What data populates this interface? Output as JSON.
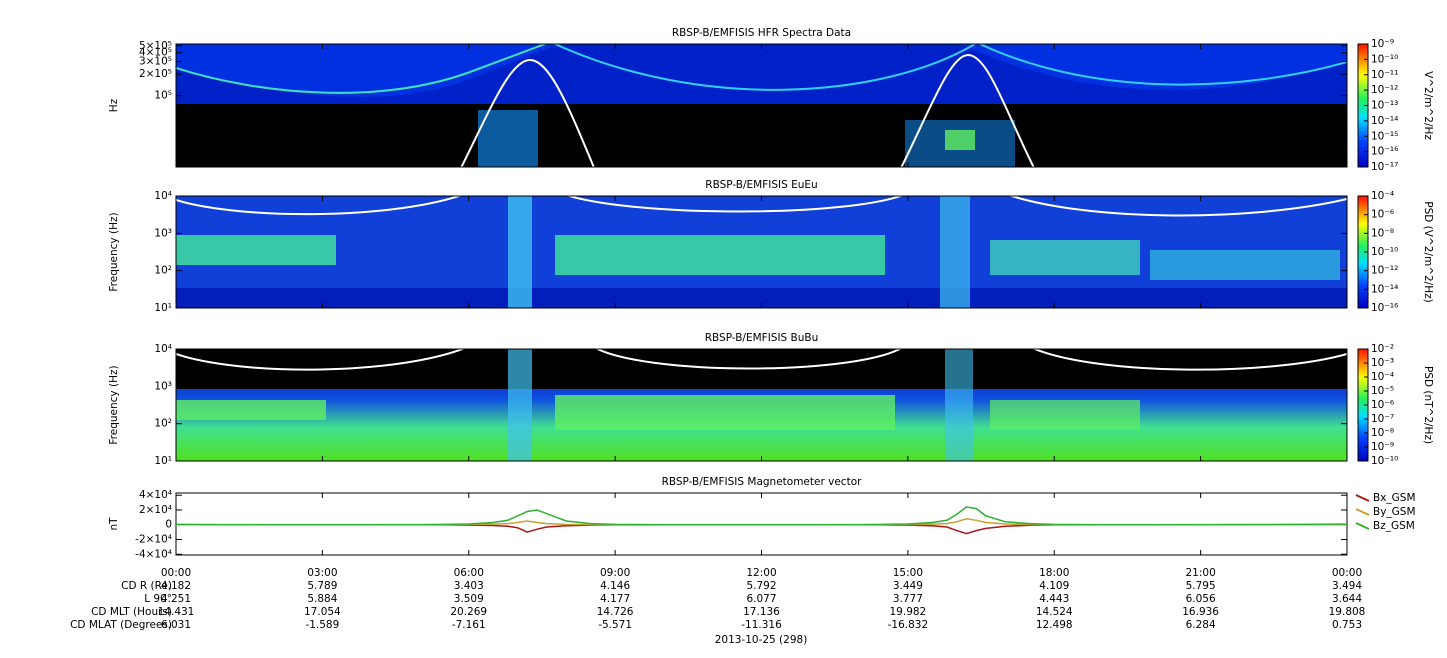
{
  "chart_data": [
    {
      "type": "heatmap",
      "title": "RBSP-B/EMFISIS  HFR Spectra Data",
      "ylabel": "Hz",
      "log": true,
      "ylim": [
        10000,
        530000
      ],
      "yticks": [
        {
          "value": 100000,
          "label": "10⁵"
        },
        {
          "value": 200000,
          "label": "2×10⁵"
        },
        {
          "value": 300000,
          "label": "3×10⁵"
        },
        {
          "value": 400000,
          "label": "4×10⁵"
        },
        {
          "value": 500000,
          "label": "5×10⁵"
        }
      ],
      "colorbar": {
        "label": "V^2/m^2/Hz",
        "lim": [
          1e-17,
          1e-09
        ],
        "ticks": [
          {
            "value": 1e-09,
            "label": "10⁻⁹"
          },
          {
            "value": 1e-10,
            "label": "10⁻¹⁰"
          },
          {
            "value": 1e-11,
            "label": "10⁻¹¹"
          },
          {
            "value": 1e-12,
            "label": "10⁻¹²"
          },
          {
            "value": 1e-13,
            "label": "10⁻¹³"
          },
          {
            "value": 1e-14,
            "label": "10⁻¹⁴"
          },
          {
            "value": 1e-15,
            "label": "10⁻¹⁵"
          },
          {
            "value": 1e-16,
            "label": "10⁻¹⁶"
          },
          {
            "value": 1e-17,
            "label": "10⁻¹⁷"
          }
        ]
      }
    },
    {
      "type": "heatmap",
      "title": "RBSP-B/EMFISIS  EuEu",
      "ylabel": "Frequency (Hz)",
      "log": true,
      "ylim": [
        10,
        10000
      ],
      "yticks": [
        {
          "value": 10,
          "label": "10¹"
        },
        {
          "value": 100,
          "label": "10²"
        },
        {
          "value": 1000,
          "label": "10³"
        },
        {
          "value": 10000,
          "label": "10⁴"
        }
      ],
      "colorbar": {
        "label": "PSD (V^2/m^2/Hz)",
        "lim": [
          1e-16,
          0.0001
        ],
        "ticks": [
          {
            "value": 0.0001,
            "label": "10⁻⁴"
          },
          {
            "value": 1e-06,
            "label": "10⁻⁶"
          },
          {
            "value": 1e-08,
            "label": "10⁻⁸"
          },
          {
            "value": 1e-10,
            "label": "10⁻¹⁰"
          },
          {
            "value": 1e-12,
            "label": "10⁻¹²"
          },
          {
            "value": 1e-14,
            "label": "10⁻¹⁴"
          },
          {
            "value": 1e-16,
            "label": "10⁻¹⁶"
          }
        ]
      }
    },
    {
      "type": "heatmap",
      "title": "RBSP-B/EMFISIS  BuBu",
      "ylabel": "Frequency (Hz)",
      "log": true,
      "ylim": [
        10,
        10000
      ],
      "yticks": [
        {
          "value": 10,
          "label": "10¹"
        },
        {
          "value": 100,
          "label": "10²"
        },
        {
          "value": 1000,
          "label": "10³"
        },
        {
          "value": 10000,
          "label": "10⁴"
        }
      ],
      "colorbar": {
        "label": "PSD (nT^2/Hz)",
        "lim": [
          1e-10,
          0.01
        ],
        "ticks": [
          {
            "value": 0.01,
            "label": "10⁻²"
          },
          {
            "value": 0.001,
            "label": "10⁻³"
          },
          {
            "value": 0.0001,
            "label": "10⁻⁴"
          },
          {
            "value": 1e-05,
            "label": "10⁻⁵"
          },
          {
            "value": 1e-06,
            "label": "10⁻⁶"
          },
          {
            "value": 1e-07,
            "label": "10⁻⁷"
          },
          {
            "value": 1e-08,
            "label": "10⁻⁸"
          },
          {
            "value": 1e-09,
            "label": "10⁻⁹"
          },
          {
            "value": 1e-10,
            "label": "10⁻¹⁰"
          }
        ]
      }
    },
    {
      "type": "line",
      "title": "RBSP-B/EMFISIS  Magnetometer vector",
      "ylabel": "nT",
      "xlim": [
        0,
        24
      ],
      "xticks": [
        {
          "value": 0,
          "label": "00:00"
        },
        {
          "value": 3,
          "label": "03:00"
        },
        {
          "value": 6,
          "label": "06:00"
        },
        {
          "value": 9,
          "label": "09:00"
        },
        {
          "value": 12,
          "label": "12:00"
        },
        {
          "value": 15,
          "label": "15:00"
        },
        {
          "value": 18,
          "label": "18:00"
        },
        {
          "value": 21,
          "label": "21:00"
        },
        {
          "value": 24,
          "label": "00:00"
        }
      ],
      "ylim": [
        -41000,
        43000
      ],
      "yticks": [
        {
          "value": 40000,
          "label": "4×10⁴"
        },
        {
          "value": 20000,
          "label": "2×10⁴"
        },
        0,
        {
          "value": -20000,
          "label": "-2×10⁴"
        },
        {
          "value": -40000,
          "label": "-4×10⁴"
        }
      ],
      "x": [
        0,
        1,
        2,
        3,
        4,
        5,
        5.5,
        6,
        6.5,
        6.8,
        7,
        7.2,
        7.4,
        7.6,
        8,
        8.5,
        9,
        10,
        11,
        12,
        13,
        14,
        14.5,
        15,
        15.5,
        15.8,
        16,
        16.2,
        16.4,
        16.6,
        17,
        17.5,
        18,
        19,
        20,
        21,
        22,
        23,
        24
      ],
      "series": [
        {
          "name": "Bx_GSM",
          "color": "#a81818",
          "values": [
            0,
            0,
            0,
            0,
            0,
            0,
            -200,
            -500,
            -1000,
            -2000,
            -4000,
            -10000,
            -6000,
            -3000,
            -1500,
            -500,
            -200,
            0,
            0,
            0,
            0,
            0,
            -200,
            -500,
            -1500,
            -3000,
            -8000,
            -12000,
            -8000,
            -5000,
            -2000,
            -800,
            -200,
            0,
            0,
            0,
            0,
            0,
            0
          ]
        },
        {
          "name": "By_GSM",
          "color": "#c8a030",
          "values": [
            0,
            0,
            0,
            0,
            0,
            0,
            100,
            300,
            800,
            1500,
            3000,
            5000,
            3000,
            1500,
            500,
            200,
            0,
            0,
            0,
            0,
            0,
            0,
            100,
            300,
            800,
            1500,
            4000,
            8000,
            6000,
            3000,
            1000,
            300,
            100,
            0,
            0,
            0,
            0,
            0,
            0
          ]
        },
        {
          "name": "Bz_GSM",
          "color": "#30b030",
          "values": [
            500,
            200,
            0,
            0,
            0,
            200,
            500,
            1000,
            3000,
            6000,
            12000,
            18000,
            20000,
            15000,
            5000,
            1500,
            500,
            0,
            0,
            0,
            0,
            200,
            500,
            1000,
            3000,
            6000,
            14000,
            24000,
            22000,
            12000,
            4000,
            1500,
            500,
            0,
            0,
            200,
            300,
            500,
            800
          ]
        }
      ]
    }
  ],
  "ephemeris": [
    {
      "label": "CD R (Re)",
      "values": [
        4.182,
        5.789,
        3.403,
        4.146,
        5.792,
        3.449,
        4.109,
        5.795,
        3.494
      ]
    },
    {
      "label": "L 90°",
      "values": [
        4.251,
        5.884,
        3.509,
        4.177,
        6.077,
        3.777,
        4.443,
        6.056,
        3.644
      ]
    },
    {
      "label": "CD MLT (Hours)",
      "values": [
        14.431,
        17.054,
        20.269,
        14.726,
        17.136,
        19.982,
        14.524,
        16.936,
        19.808
      ]
    },
    {
      "label": "CD MLAT (Degrees)",
      "values": [
        6.031,
        -1.589,
        -7.161,
        -5.571,
        -11.316,
        -16.832,
        12.498,
        6.284,
        0.753
      ]
    }
  ],
  "date": "2013-10-25 (298)"
}
